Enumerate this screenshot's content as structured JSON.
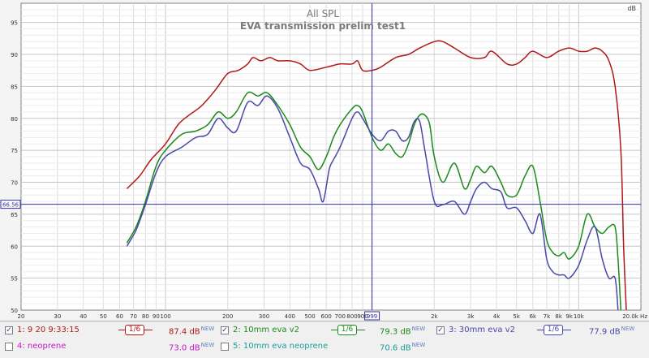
{
  "chart_data": {
    "type": "line",
    "title": "All SPL",
    "subtitle": "EVA transmission prelim test1",
    "ylabel": "dB",
    "xlabel": "Hz",
    "xscale": "log",
    "xlim": [
      20,
      20000
    ],
    "ylim": [
      50,
      98
    ],
    "grid": true,
    "x_ticks": [
      {
        "v": 30,
        "t": "30"
      },
      {
        "v": 40,
        "t": "40"
      },
      {
        "v": 50,
        "t": "50"
      },
      {
        "v": 60,
        "t": "60"
      },
      {
        "v": 70,
        "t": "70"
      },
      {
        "v": 80,
        "t": "80"
      },
      {
        "v": 90,
        "t": "90"
      },
      {
        "v": 100,
        "t": "100"
      },
      {
        "v": 200,
        "t": "200"
      },
      {
        "v": 300,
        "t": "300"
      },
      {
        "v": 400,
        "t": "400"
      },
      {
        "v": 500,
        "t": "500"
      },
      {
        "v": 600,
        "t": "600"
      },
      {
        "v": 700,
        "t": "700"
      },
      {
        "v": 800,
        "t": "800"
      },
      {
        "v": 900,
        "t": "900"
      },
      {
        "v": 2000,
        "t": "2k"
      },
      {
        "v": 3000,
        "t": "3k"
      },
      {
        "v": 4000,
        "t": "4k"
      },
      {
        "v": 5000,
        "t": "5k"
      },
      {
        "v": 6000,
        "t": "6k"
      },
      {
        "v": 7000,
        "t": "7k"
      },
      {
        "v": 8000,
        "t": "8k"
      },
      {
        "v": 9000,
        "t": "9k"
      },
      {
        "v": 10000,
        "t": "10k"
      },
      {
        "v": 20000,
        "t": "20.0k Hz"
      }
    ],
    "y_ticks": [
      55,
      60,
      65,
      70,
      75,
      80,
      85,
      90,
      95
    ],
    "cursor": {
      "x": 999,
      "x_label": "999",
      "y": 66.56,
      "y_label": "66.56"
    },
    "series": [
      {
        "name": "1: 9 20 9:33:15",
        "color": "#b01818",
        "smoothing": "1/6",
        "level": "87.4 dB",
        "level_tag": "NEW",
        "checked": true,
        "points": [
          [
            65,
            69
          ],
          [
            75,
            71
          ],
          [
            85,
            73.5
          ],
          [
            100,
            76
          ],
          [
            115,
            79
          ],
          [
            130,
            80.5
          ],
          [
            150,
            82
          ],
          [
            175,
            84.5
          ],
          [
            200,
            87
          ],
          [
            225,
            87.5
          ],
          [
            250,
            88.5
          ],
          [
            265,
            89.5
          ],
          [
            290,
            89
          ],
          [
            320,
            89.5
          ],
          [
            350,
            89
          ],
          [
            400,
            89
          ],
          [
            450,
            88.5
          ],
          [
            500,
            87.5
          ],
          [
            600,
            88
          ],
          [
            700,
            88.5
          ],
          [
            800,
            88.5
          ],
          [
            850,
            89
          ],
          [
            900,
            87.5
          ],
          [
            1000,
            87.5
          ],
          [
            1100,
            88
          ],
          [
            1300,
            89.5
          ],
          [
            1500,
            90
          ],
          [
            1700,
            91
          ],
          [
            2000,
            92
          ],
          [
            2200,
            92
          ],
          [
            2500,
            91
          ],
          [
            3000,
            89.5
          ],
          [
            3500,
            89.5
          ],
          [
            3800,
            90.5
          ],
          [
            4500,
            88.5
          ],
          [
            5000,
            88.5
          ],
          [
            5500,
            89.5
          ],
          [
            6000,
            90.5
          ],
          [
            7000,
            89.5
          ],
          [
            8000,
            90.5
          ],
          [
            9000,
            91
          ],
          [
            10000,
            90.5
          ],
          [
            11000,
            90.5
          ],
          [
            12000,
            91
          ],
          [
            13000,
            90.5
          ],
          [
            14000,
            89
          ],
          [
            15000,
            85
          ],
          [
            16000,
            75
          ],
          [
            16500,
            60
          ],
          [
            17000,
            50
          ]
        ]
      },
      {
        "name": "2: 10mm eva v2",
        "color": "#1a8a1a",
        "smoothing": "1/6",
        "level": "79.3 dB",
        "level_tag": "NEW",
        "checked": true,
        "points": [
          [
            65,
            60.5
          ],
          [
            72,
            63
          ],
          [
            80,
            67
          ],
          [
            90,
            72.5
          ],
          [
            100,
            75
          ],
          [
            120,
            77.5
          ],
          [
            140,
            78
          ],
          [
            160,
            79
          ],
          [
            180,
            81
          ],
          [
            200,
            80
          ],
          [
            220,
            81
          ],
          [
            250,
            84
          ],
          [
            280,
            83.5
          ],
          [
            310,
            84
          ],
          [
            350,
            82
          ],
          [
            400,
            79
          ],
          [
            450,
            75.5
          ],
          [
            500,
            74
          ],
          [
            550,
            72
          ],
          [
            600,
            74
          ],
          [
            650,
            77
          ],
          [
            700,
            79
          ],
          [
            800,
            81.5
          ],
          [
            850,
            82
          ],
          [
            900,
            81
          ],
          [
            1000,
            77
          ],
          [
            1100,
            75
          ],
          [
            1200,
            76
          ],
          [
            1300,
            74.5
          ],
          [
            1400,
            74
          ],
          [
            1500,
            76
          ],
          [
            1600,
            79
          ],
          [
            1700,
            80.5
          ],
          [
            1800,
            80.5
          ],
          [
            1900,
            79
          ],
          [
            2000,
            74
          ],
          [
            2200,
            70
          ],
          [
            2500,
            73
          ],
          [
            2800,
            69
          ],
          [
            3000,
            70.5
          ],
          [
            3200,
            72.5
          ],
          [
            3500,
            71.5
          ],
          [
            3800,
            72.5
          ],
          [
            4200,
            70
          ],
          [
            4500,
            68
          ],
          [
            5000,
            68
          ],
          [
            5500,
            71
          ],
          [
            6000,
            72.5
          ],
          [
            6500,
            67
          ],
          [
            7000,
            61
          ],
          [
            7500,
            59
          ],
          [
            8000,
            58.5
          ],
          [
            8500,
            59
          ],
          [
            9000,
            58
          ],
          [
            10000,
            60
          ],
          [
            11000,
            65
          ],
          [
            12000,
            63
          ],
          [
            13000,
            62
          ],
          [
            14000,
            63
          ],
          [
            15000,
            63
          ],
          [
            15500,
            58
          ],
          [
            16000,
            50
          ]
        ]
      },
      {
        "name": "3: 30mm eva v2",
        "color": "#4848a8",
        "smoothing": "1/6",
        "level": "77.9 dB",
        "level_tag": "NEW",
        "checked": true,
        "points": [
          [
            65,
            60
          ],
          [
            72,
            62.5
          ],
          [
            80,
            66.5
          ],
          [
            90,
            71.5
          ],
          [
            100,
            74
          ],
          [
            120,
            75.5
          ],
          [
            140,
            77
          ],
          [
            160,
            77.5
          ],
          [
            180,
            80
          ],
          [
            200,
            78.5
          ],
          [
            220,
            78
          ],
          [
            250,
            82.5
          ],
          [
            280,
            82
          ],
          [
            310,
            83.5
          ],
          [
            350,
            81.5
          ],
          [
            400,
            77
          ],
          [
            450,
            73
          ],
          [
            500,
            72
          ],
          [
            550,
            69
          ],
          [
            580,
            67
          ],
          [
            620,
            72
          ],
          [
            650,
            73.5
          ],
          [
            700,
            75.5
          ],
          [
            800,
            80
          ],
          [
            850,
            81
          ],
          [
            900,
            80
          ],
          [
            1000,
            77.5
          ],
          [
            1100,
            76.5
          ],
          [
            1200,
            78
          ],
          [
            1300,
            78
          ],
          [
            1400,
            76.5
          ],
          [
            1500,
            77
          ],
          [
            1600,
            79.5
          ],
          [
            1700,
            79.5
          ],
          [
            1800,
            75
          ],
          [
            2000,
            67
          ],
          [
            2200,
            66.5
          ],
          [
            2500,
            67
          ],
          [
            2800,
            65
          ],
          [
            3000,
            67
          ],
          [
            3200,
            69
          ],
          [
            3500,
            70
          ],
          [
            3800,
            69
          ],
          [
            4200,
            68.5
          ],
          [
            4500,
            66
          ],
          [
            5000,
            66
          ],
          [
            5500,
            64
          ],
          [
            6000,
            62
          ],
          [
            6500,
            65
          ],
          [
            7000,
            58
          ],
          [
            7500,
            56
          ],
          [
            8000,
            55.5
          ],
          [
            8500,
            55.5
          ],
          [
            9000,
            55
          ],
          [
            10000,
            57
          ],
          [
            11000,
            61
          ],
          [
            12000,
            63
          ],
          [
            13000,
            58
          ],
          [
            14000,
            55
          ],
          [
            15000,
            55
          ],
          [
            15500,
            50
          ]
        ]
      }
    ],
    "legend_unchecked": [
      {
        "name": "4: neoprene",
        "color": "#c818c8",
        "level": "73.0 dB",
        "level_tag": "NEW",
        "checked": false
      },
      {
        "name": "5: 10mm eva neoprene",
        "color": "#18a098",
        "level": "70.6 dB",
        "level_tag": "NEW",
        "checked": false
      }
    ]
  },
  "colors": {
    "plot_bg": "#ffffff",
    "grid": "#dcdcdc",
    "cursor": "#3030a0",
    "title": "#7a7a7a"
  }
}
